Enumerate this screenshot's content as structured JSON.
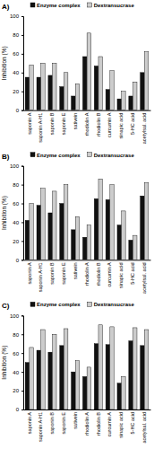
{
  "chart_data": [
    {
      "type": "bar",
      "title": "A)",
      "y_label": "Inhibition (%)",
      "categories": [
        "saponin A",
        "saponin A-H1",
        "saponin B",
        "saponin E",
        "sativein",
        "rhodiolin A",
        "rhodiolin B",
        "curcumin A",
        "sinapic acid",
        "5-HC acid",
        "acetylsal. acid"
      ],
      "series": [
        {
          "name": "Enzyme complex",
          "color": "#111111",
          "values": [
            35,
            35,
            37,
            25,
            15,
            57,
            47,
            22,
            12,
            15,
            40
          ]
        },
        {
          "name": "Dextransucrase",
          "color": "#cccccc",
          "values": [
            48,
            50,
            50,
            40,
            28,
            82,
            57,
            42,
            20,
            30,
            62
          ]
        }
      ],
      "ylim": [
        0,
        100
      ],
      "yticks": [
        0,
        20,
        40,
        60,
        80,
        100
      ],
      "legend": "top"
    },
    {
      "type": "bar",
      "title": "B)",
      "y_label": "Inhibition (%)",
      "categories": [
        "saponin A",
        "saponin A-H1",
        "saponin B",
        "saponin E",
        "sativein",
        "rhodiolin A",
        "rhodiolin B",
        "curcumin A",
        "sinapic acid",
        "5-HC acid",
        "acetylsal. acid"
      ],
      "series": [
        {
          "name": "Enzyme complex",
          "color": "#111111",
          "values": [
            42,
            58,
            50,
            60,
            32,
            24,
            65,
            64,
            37,
            21,
            68
          ]
        },
        {
          "name": "Dextransucrase",
          "color": "#cccccc",
          "values": [
            60,
            76,
            73,
            80,
            46,
            37,
            86,
            80,
            52,
            26,
            82
          ]
        }
      ],
      "ylim": [
        0,
        100
      ],
      "yticks": [
        0,
        20,
        40,
        60,
        80,
        100
      ],
      "legend": "top"
    },
    {
      "type": "bar",
      "title": "C)",
      "y_label": "Inhibition (%)",
      "categories": [
        "saponin A",
        "saponin A-H1",
        "saponin B",
        "saponin E",
        "sativein",
        "rhodiolin A",
        "rhodiolin B",
        "curcumin A",
        "sinapic acid",
        "5-HC acid",
        "acetylsal. acid"
      ],
      "series": [
        {
          "name": "Enzyme complex",
          "color": "#111111",
          "values": [
            50,
            63,
            61,
            68,
            40,
            35,
            70,
            69,
            28,
            73,
            68
          ]
        },
        {
          "name": "Dextransucrase",
          "color": "#cccccc",
          "values": [
            66,
            85,
            80,
            86,
            52,
            45,
            90,
            88,
            35,
            87,
            85
          ]
        }
      ],
      "ylim": [
        0,
        100
      ],
      "yticks": [
        0,
        20,
        40,
        60,
        80,
        100
      ],
      "legend": "top"
    }
  ]
}
